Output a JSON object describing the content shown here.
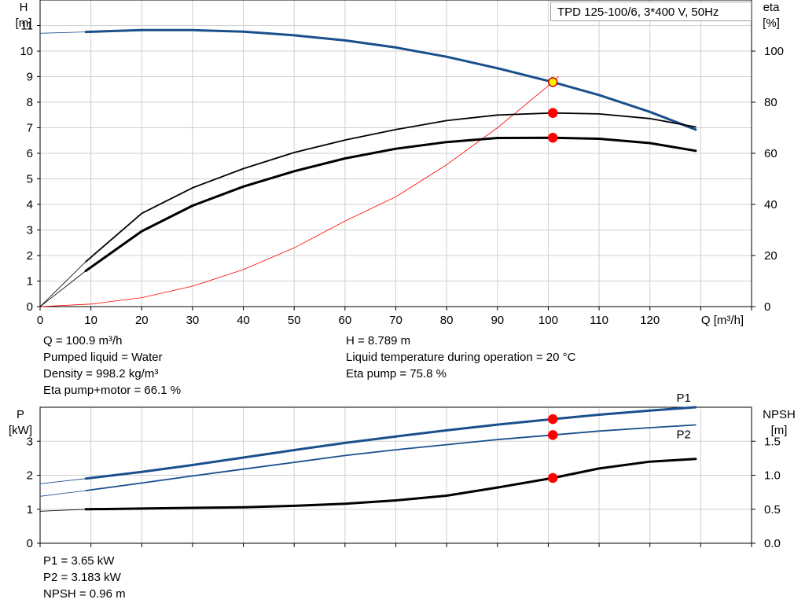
{
  "chart_data": [
    {
      "type": "line",
      "title": "TPD 125-100/6, 3*400 V, 50Hz",
      "xlabel": "Q [m³/h]",
      "ylabel": "H\n[m]",
      "ylabel_right": "eta\n[%]",
      "xlim": [
        0,
        140
      ],
      "ylim": [
        0,
        12
      ],
      "ylim_right": [
        0,
        120
      ],
      "x_ticks": [
        "0",
        "10",
        "20",
        "30",
        "40",
        "50",
        "60",
        "70",
        "80",
        "90",
        "100",
        "110",
        "120"
      ],
      "y_ticks": [
        "0",
        "1",
        "2",
        "3",
        "4",
        "5",
        "6",
        "7",
        "8",
        "9",
        "10",
        "11"
      ],
      "y_ticks_right": [
        "0",
        "20",
        "40",
        "60",
        "80",
        "100"
      ],
      "grid": true,
      "series": [
        {
          "axis": "left",
          "color": "#1a4f8c",
          "width": 3,
          "x": [
            0,
            9,
            20,
            30,
            40,
            50,
            60,
            70,
            80,
            90,
            100.9,
            110,
            120,
            129
          ],
          "y": [
            10.7,
            10.75,
            10.82,
            10.82,
            10.76,
            10.62,
            10.42,
            10.14,
            9.78,
            9.33,
            8.789,
            8.28,
            7.62,
            6.93
          ]
        },
        {
          "axis": "left",
          "color": "#ff0000",
          "width": 0.8,
          "x": [
            0,
            10,
            20,
            30,
            40,
            50,
            60,
            70,
            80,
            90,
            100.9,
            102
          ],
          "y": [
            0,
            0.1,
            0.35,
            0.8,
            1.45,
            2.3,
            3.35,
            4.3,
            5.55,
            7.0,
            8.789,
            9.0
          ]
        },
        {
          "axis": "right",
          "color": "#000000",
          "width": 1.8,
          "x": [
            0,
            9,
            20,
            30,
            40,
            50,
            60,
            70,
            80,
            90,
            100.9,
            110,
            120,
            129
          ],
          "y": [
            0,
            17.6,
            36.5,
            46.5,
            54,
            60.3,
            65.2,
            69.3,
            72.8,
            75,
            75.8,
            75.4,
            73.6,
            70.3
          ]
        },
        {
          "axis": "right",
          "color": "#000000",
          "width": 3,
          "x": [
            0,
            9,
            20,
            30,
            40,
            50,
            60,
            70,
            80,
            90,
            100.9,
            110,
            120,
            129
          ],
          "y": [
            0,
            14,
            29.5,
            39.5,
            47,
            53,
            58,
            61.8,
            64.4,
            66,
            66.1,
            65.7,
            64,
            61
          ]
        }
      ],
      "markers": [
        {
          "axis": "left",
          "x": 100.9,
          "y": 8.789,
          "fill": "#ffee00",
          "stroke": "#cc0000"
        },
        {
          "axis": "right",
          "x": 100.9,
          "y": 75.8,
          "fill": "#ff0000",
          "stroke": "#ff0000"
        },
        {
          "axis": "right",
          "x": 100.9,
          "y": 66.1,
          "fill": "#ff0000",
          "stroke": "#ff0000"
        }
      ]
    },
    {
      "type": "line",
      "ylabel": "P\n[kW]",
      "ylabel_right": "NPSH\n[m]",
      "xlim": [
        0,
        140
      ],
      "ylim": [
        0,
        4
      ],
      "ylim_right": [
        0,
        2
      ],
      "y_ticks": [
        "0",
        "1",
        "2",
        "3"
      ],
      "y_ticks_right": [
        "0.0",
        "0.5",
        "1.0",
        "1.5"
      ],
      "grid": true,
      "series": [
        {
          "name": "P1",
          "axis": "left",
          "color": "#1a4f8c",
          "width": 3,
          "x": [
            0,
            9,
            20,
            30,
            40,
            50,
            60,
            70,
            80,
            90,
            100.9,
            110,
            120,
            129
          ],
          "y": [
            1.75,
            1.9,
            2.1,
            2.3,
            2.52,
            2.74,
            2.95,
            3.14,
            3.32,
            3.49,
            3.65,
            3.78,
            3.9,
            4.0
          ]
        },
        {
          "name": "P2",
          "axis": "left",
          "color": "#1a4f8c",
          "width": 1.8,
          "x": [
            0,
            9,
            20,
            30,
            40,
            50,
            60,
            70,
            80,
            90,
            100.9,
            110,
            120,
            129
          ],
          "y": [
            1.38,
            1.55,
            1.77,
            1.98,
            2.18,
            2.38,
            2.58,
            2.75,
            2.9,
            3.05,
            3.183,
            3.3,
            3.4,
            3.48
          ]
        },
        {
          "axis": "right",
          "color": "#000000",
          "width": 3,
          "x": [
            0,
            9,
            20,
            30,
            40,
            50,
            60,
            70,
            80,
            90,
            100.9,
            110,
            120,
            129
          ],
          "y": [
            0.47,
            0.5,
            0.51,
            0.52,
            0.53,
            0.55,
            0.58,
            0.63,
            0.7,
            0.82,
            0.96,
            1.1,
            1.2,
            1.24
          ]
        }
      ],
      "markers": [
        {
          "axis": "left",
          "x": 100.9,
          "y": 3.65,
          "fill": "#ff0000",
          "stroke": "#ff0000"
        },
        {
          "axis": "left",
          "x": 100.9,
          "y": 3.183,
          "fill": "#ff0000",
          "stroke": "#ff0000"
        },
        {
          "axis": "right",
          "x": 100.9,
          "y": 0.96,
          "fill": "#ff0000",
          "stroke": "#ff0000"
        }
      ]
    }
  ],
  "info_top_left": [
    "Q = 100.9 m³/h",
    "Pumped liquid = Water",
    "Density = 998.2 kg/m³",
    "Eta pump+motor = 66.1 %"
  ],
  "info_top_right": [
    "H = 8.789 m",
    "Liquid temperature during operation = 20 °C",
    "Eta pump = 75.8 %"
  ],
  "info_bottom": [
    "P1 = 3.65 kW",
    "P2 = 3.183 kW",
    "NPSH = 0.96 m"
  ]
}
